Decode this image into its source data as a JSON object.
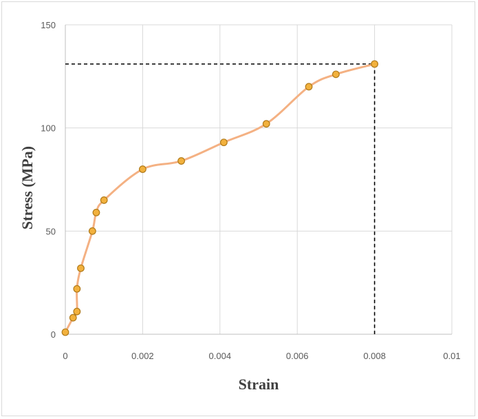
{
  "chart_data": {
    "type": "scatter",
    "title": "",
    "xlabel": "Strain",
    "ylabel": "Stress (MPa)",
    "xlim": [
      0,
      0.01
    ],
    "ylim": [
      0,
      150
    ],
    "x_ticks": [
      "0",
      "0.002",
      "0.004",
      "0.006",
      "0.008",
      "0.01"
    ],
    "y_ticks": [
      "0",
      "50",
      "100",
      "150"
    ],
    "grid": true,
    "legend": "none",
    "line_style": "smoothed",
    "colors": {
      "line": "#f4b183",
      "marker_fill": "#f2b13d",
      "marker_edge": "#b07a1a",
      "guide": "#000000"
    },
    "series": [
      {
        "x": [
          0,
          0.0002,
          0.0003,
          0.0003,
          0.0004,
          0.0007,
          0.0008,
          0.001,
          0.002,
          0.003,
          0.0041,
          0.0052,
          0.0063,
          0.007,
          0.008
        ],
        "y": [
          1,
          8,
          11,
          22,
          32,
          50,
          59,
          65,
          80,
          84,
          93,
          102,
          120,
          126,
          131
        ]
      }
    ],
    "guide_point": {
      "x": 0.008,
      "y": 131
    }
  }
}
